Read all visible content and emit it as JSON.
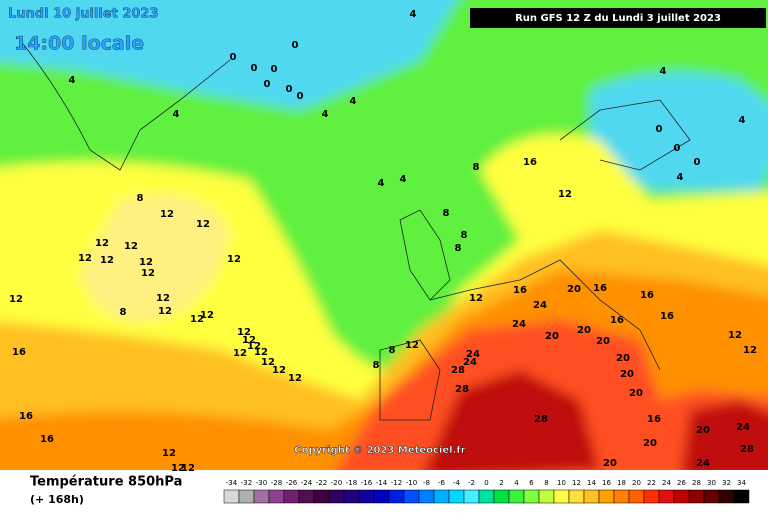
{
  "header": {
    "date": "Lundi 10 juillet 2023",
    "time": "14:00 locale",
    "run": "Run GFS 12 Z du Lundi 3 juillet 2023"
  },
  "copyright": "Copyright © 2023 Meteociel.fr",
  "footer": {
    "title": "Température 850hPa",
    "lead": "(+ 168h)"
  },
  "contour_labels": [
    4,
    0,
    0,
    0,
    0,
    0,
    0,
    0,
    4,
    4,
    4,
    4,
    4,
    4,
    4,
    0,
    0,
    0,
    4,
    4,
    8,
    12,
    12,
    8,
    16,
    12,
    8,
    8,
    8,
    12,
    12,
    12,
    12,
    12,
    12,
    12,
    12,
    8,
    12,
    12,
    12,
    12,
    12,
    12,
    12,
    12,
    12,
    12,
    12,
    12,
    8,
    8,
    12,
    12,
    16,
    24,
    20,
    16,
    16,
    16,
    24,
    20,
    20,
    20,
    16,
    12,
    12,
    16,
    24,
    24,
    28,
    28,
    20,
    20,
    20,
    16,
    20,
    24,
    28,
    20,
    24,
    20,
    28,
    16,
    16,
    12,
    12,
    12
  ],
  "legend": {
    "values": [
      -34,
      -32,
      -30,
      -28,
      -26,
      -24,
      -22,
      -20,
      -18,
      -16,
      -14,
      -12,
      -10,
      -8,
      -6,
      -4,
      -2,
      0,
      2,
      4,
      6,
      8,
      10,
      12,
      14,
      16,
      18,
      20,
      22,
      24,
      26,
      28,
      30,
      32,
      34
    ],
    "colors": [
      "#d8d8d8",
      "#b0b0b0",
      "#a070a0",
      "#904090",
      "#702070",
      "#501050",
      "#400040",
      "#300060",
      "#200080",
      "#1000a0",
      "#0000c0",
      "#0020e0",
      "#0050ff",
      "#0080ff",
      "#00b0ff",
      "#00d8ff",
      "#40f0ff",
      "#00e0a0",
      "#00e040",
      "#40f040",
      "#80ff40",
      "#c0ff40",
      "#ffff40",
      "#ffe040",
      "#ffc020",
      "#ffa000",
      "#ff8000",
      "#ff6000",
      "#ff3000",
      "#e01010",
      "#c00000",
      "#900000",
      "#600000",
      "#300000",
      "#000000"
    ]
  }
}
